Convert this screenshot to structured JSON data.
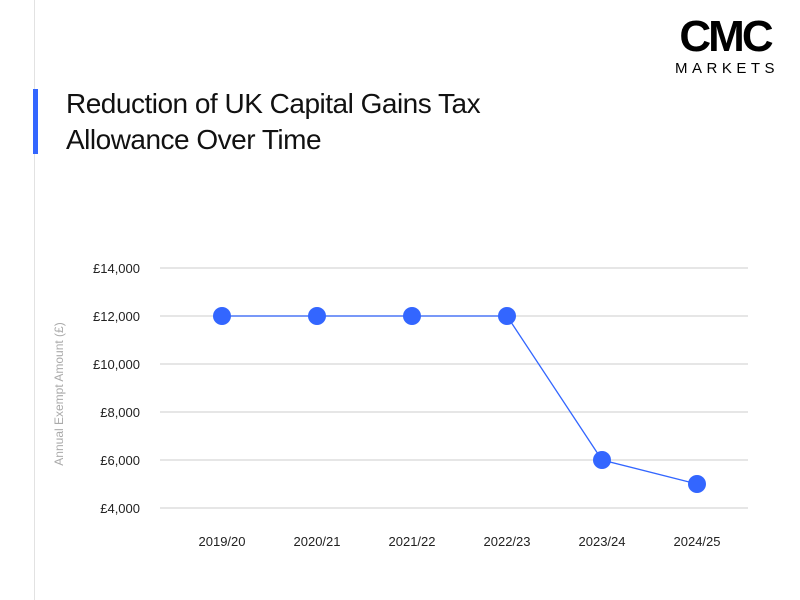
{
  "logo": {
    "mark": "CMC",
    "sub": "MARKETS"
  },
  "title": "Reduction of UK Capital Gains Tax Allowance Over Time",
  "colors": {
    "accent": "#3366ff",
    "grid": "#dddddd"
  },
  "chart_data": {
    "type": "line",
    "title": "Reduction of UK Capital Gains Tax Allowance Over Time",
    "xlabel": "",
    "ylabel": "Annual Exempt Amount (£)",
    "categories": [
      "2019/20",
      "2020/21",
      "2021/22",
      "2022/23",
      "2023/24",
      "2024/25"
    ],
    "values": [
      12000,
      12000,
      12000,
      12000,
      6000,
      5000
    ],
    "ylim": [
      4000,
      14000
    ],
    "yticks": [
      4000,
      6000,
      8000,
      10000,
      12000,
      14000
    ],
    "ytick_labels": [
      "£4,000",
      "£6,000",
      "£8,000",
      "£10,000",
      "£12,000",
      "£14,000"
    ],
    "grid": "horizontal",
    "legend": "none"
  }
}
